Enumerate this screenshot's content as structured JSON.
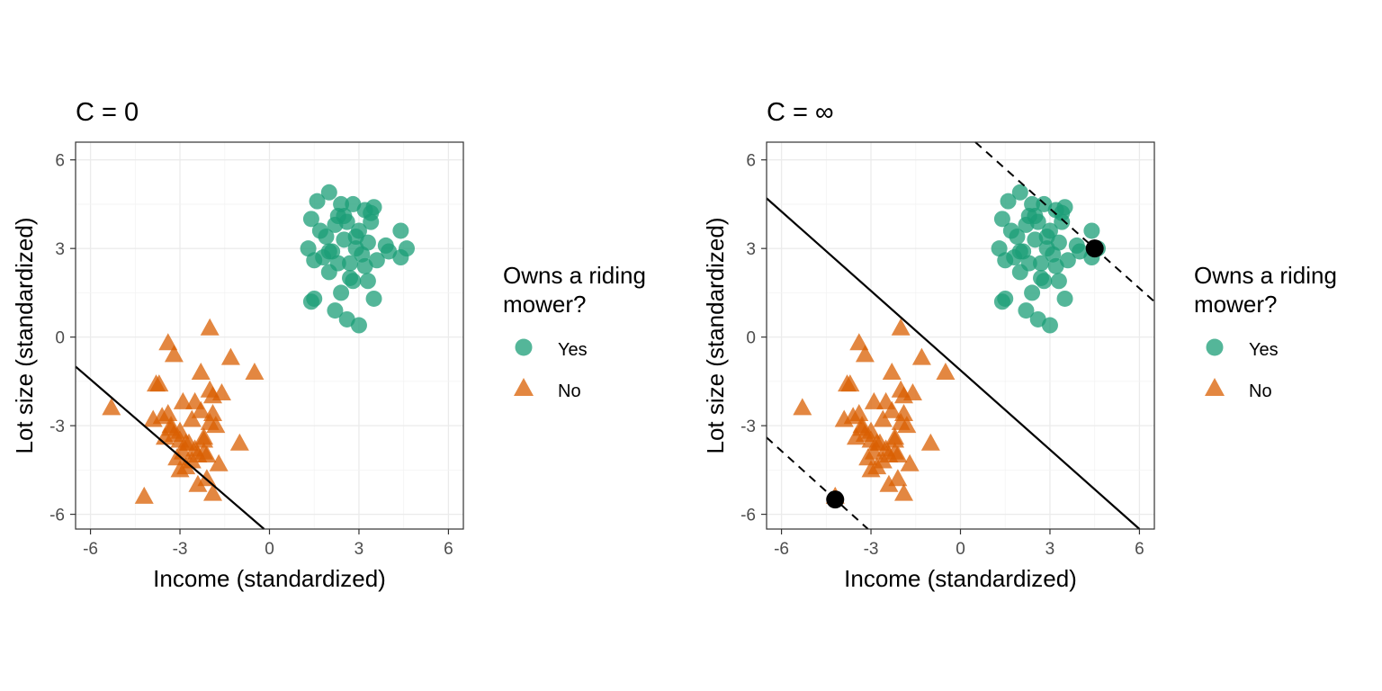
{
  "colors": {
    "yes": "#1b9e77",
    "no": "#d95f02",
    "support": "#000000"
  },
  "chart_data": [
    {
      "type": "scatter",
      "title": "C = 0",
      "xlabel": "Income (standardized)",
      "ylabel": "Lot size (standardized)",
      "xlim": [
        -6.5,
        6.5
      ],
      "ylim": [
        -6.5,
        6.6
      ],
      "xticks": [
        -6,
        -3,
        0,
        3,
        6
      ],
      "yticks": [
        -6,
        -3,
        0,
        3,
        6
      ],
      "xtick_labels": [
        "-6",
        "-3",
        "0",
        "3",
        "6"
      ],
      "ytick_labels": [
        "-6",
        "-3",
        "0",
        "3",
        "6"
      ],
      "grid": true,
      "legend": {
        "title": "Owns a riding mower?",
        "title_lines": [
          "Owns a riding",
          "mower?"
        ],
        "position": "right",
        "entries": [
          "Yes",
          "No"
        ]
      },
      "series": [
        {
          "name": "Yes",
          "marker": "circle",
          "x": [
            1.4,
            1.6,
            2.0,
            2.4,
            2.8,
            3.2,
            3.5,
            1.3,
            1.9,
            2.2,
            2.6,
            3.0,
            3.4,
            3.9,
            4.4,
            1.5,
            2.1,
            2.5,
            2.9,
            3.3,
            4.0,
            4.6,
            1.8,
            2.3,
            2.7,
            3.1,
            3.6,
            4.4,
            1.5,
            2.0,
            2.4,
            2.8,
            3.3,
            1.4,
            2.2,
            2.6,
            3.0,
            3.5,
            1.7,
            2.5,
            2.9,
            3.2,
            2.0,
            2.3,
            2.7,
            3.4
          ],
          "y": [
            4.0,
            4.6,
            4.9,
            4.5,
            4.5,
            4.3,
            4.4,
            3.0,
            3.4,
            3.8,
            3.9,
            3.6,
            3.9,
            3.1,
            3.6,
            2.6,
            2.9,
            3.3,
            3.4,
            3.2,
            2.9,
            3.0,
            2.7,
            2.5,
            2.5,
            2.8,
            2.6,
            2.7,
            1.3,
            2.2,
            1.5,
            1.9,
            1.9,
            1.2,
            0.9,
            0.6,
            0.4,
            1.3,
            3.6,
            4.1,
            3.0,
            2.4,
            2.9,
            4.1,
            2.0,
            4.2
          ]
        },
        {
          "name": "No",
          "marker": "triangle",
          "x": [
            -5.3,
            -4.2,
            -3.4,
            -3.2,
            -3.8,
            -3.6,
            -3.0,
            -2.9,
            -2.6,
            -2.3,
            -2.0,
            -1.9,
            -1.6,
            -1.3,
            -0.5,
            -3.9,
            -3.5,
            -3.3,
            -3.1,
            -2.8,
            -2.5,
            -2.2,
            -2.0,
            -1.7,
            -3.2,
            -3.0,
            -2.7,
            -2.4,
            -2.1,
            -1.8,
            -1.0,
            -2.3,
            -2.0,
            -3.4,
            -2.9,
            -2.6,
            -2.2,
            -1.9,
            -3.7,
            -3.0,
            -2.8,
            -2.5,
            -2.1,
            -1.9,
            -2.2,
            -3.3,
            -2.4
          ],
          "y": [
            -2.4,
            -5.4,
            -0.2,
            -0.6,
            -1.6,
            -2.7,
            -3.2,
            -2.2,
            -2.8,
            -1.2,
            0.3,
            -2.0,
            -1.9,
            -0.7,
            -1.2,
            -2.8,
            -3.4,
            -3.0,
            -4.1,
            -3.6,
            -3.8,
            -3.5,
            -2.9,
            -4.3,
            -3.3,
            -4.5,
            -3.6,
            -4.0,
            -4.8,
            -3.0,
            -3.6,
            -2.5,
            -1.8,
            -2.6,
            -3.9,
            -4.2,
            -3.4,
            -5.3,
            -1.6,
            -3.5,
            -4.4,
            -2.2,
            -4.0,
            -2.6,
            -3.9,
            -3.1,
            -5.0
          ]
        }
      ],
      "boundary": {
        "solid_x": [
          -6.5,
          -0.18
        ],
        "solid_y": [
          -1.0,
          -6.5
        ]
      }
    },
    {
      "type": "scatter",
      "title": "C = ∞",
      "xlabel": "Income (standardized)",
      "ylabel": "Lot size (standardized)",
      "xlim": [
        -6.5,
        6.5
      ],
      "ylim": [
        -6.5,
        6.6
      ],
      "xticks": [
        -6,
        -3,
        0,
        3,
        6
      ],
      "yticks": [
        -6,
        -3,
        0,
        3,
        6
      ],
      "xtick_labels": [
        "-6",
        "-3",
        "0",
        "3",
        "6"
      ],
      "ytick_labels": [
        "-6",
        "-3",
        "0",
        "3",
        "6"
      ],
      "grid": true,
      "legend": {
        "title": "Owns a riding mower?",
        "title_lines": [
          "Owns a riding",
          "mower?"
        ],
        "position": "right",
        "entries": [
          "Yes",
          "No"
        ]
      },
      "series": [
        {
          "name": "Yes",
          "marker": "circle",
          "x": [
            1.4,
            1.6,
            2.0,
            2.4,
            2.8,
            3.2,
            3.5,
            1.3,
            1.9,
            2.2,
            2.6,
            3.0,
            3.4,
            3.9,
            4.4,
            1.5,
            2.1,
            2.5,
            2.9,
            3.3,
            4.0,
            4.6,
            1.8,
            2.3,
            2.7,
            3.1,
            3.6,
            4.4,
            1.5,
            2.0,
            2.4,
            2.8,
            3.3,
            1.4,
            2.2,
            2.6,
            3.0,
            3.5,
            1.7,
            2.5,
            2.9,
            3.2,
            2.0,
            2.3,
            2.7,
            3.4
          ],
          "y": [
            4.0,
            4.6,
            4.9,
            4.5,
            4.5,
            4.3,
            4.4,
            3.0,
            3.4,
            3.8,
            3.9,
            3.6,
            3.9,
            3.1,
            3.6,
            2.6,
            2.9,
            3.3,
            3.4,
            3.2,
            2.9,
            3.0,
            2.7,
            2.5,
            2.5,
            2.8,
            2.6,
            2.7,
            1.3,
            2.2,
            1.5,
            1.9,
            1.9,
            1.2,
            0.9,
            0.6,
            0.4,
            1.3,
            3.6,
            4.1,
            3.0,
            2.4,
            2.9,
            4.1,
            2.0,
            4.2
          ]
        },
        {
          "name": "No",
          "marker": "triangle",
          "x": [
            -5.3,
            -4.2,
            -3.4,
            -3.2,
            -3.8,
            -3.6,
            -3.0,
            -2.9,
            -2.6,
            -2.3,
            -2.0,
            -1.9,
            -1.6,
            -1.3,
            -0.5,
            -3.9,
            -3.5,
            -3.3,
            -3.1,
            -2.8,
            -2.5,
            -2.2,
            -2.0,
            -1.7,
            -3.2,
            -3.0,
            -2.7,
            -2.4,
            -2.1,
            -1.8,
            -1.0,
            -2.3,
            -2.0,
            -3.4,
            -2.9,
            -2.6,
            -2.2,
            -1.9,
            -3.7,
            -3.0,
            -2.8,
            -2.5,
            -2.1,
            -1.9,
            -2.2,
            -3.3,
            -2.4
          ],
          "y": [
            -2.4,
            -5.4,
            -0.2,
            -0.6,
            -1.6,
            -2.7,
            -3.2,
            -2.2,
            -2.8,
            -1.2,
            0.3,
            -2.0,
            -1.9,
            -0.7,
            -1.2,
            -2.8,
            -3.4,
            -3.0,
            -4.1,
            -3.6,
            -3.8,
            -3.5,
            -2.9,
            -4.3,
            -3.3,
            -4.5,
            -3.6,
            -4.0,
            -4.8,
            -3.0,
            -3.6,
            -2.5,
            -1.8,
            -2.6,
            -3.9,
            -4.2,
            -3.4,
            -5.3,
            -1.6,
            -3.5,
            -4.4,
            -2.2,
            -4.0,
            -2.6,
            -3.9,
            -3.1,
            -5.0
          ]
        }
      ],
      "support_vectors": {
        "x": [
          -4.2,
          4.5
        ],
        "y": [
          -5.5,
          3.0
        ]
      },
      "boundary": {
        "solid_x": [
          -6.5,
          6.0
        ],
        "solid_y": [
          4.7,
          -6.5
        ],
        "dashed_upper_x": [
          0.5,
          6.5
        ],
        "dashed_upper_y": [
          6.6,
          1.2
        ],
        "dashed_lower_x": [
          -6.5,
          -3.1
        ],
        "dashed_lower_y": [
          -3.4,
          -6.5
        ]
      }
    }
  ]
}
